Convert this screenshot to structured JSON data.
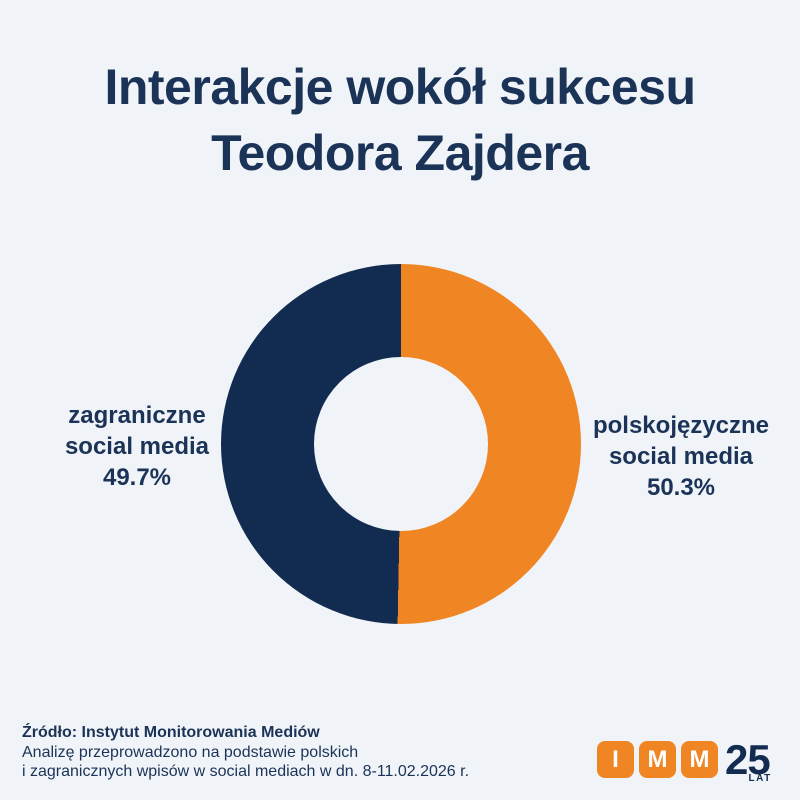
{
  "colors": {
    "background": "#F0F4F8",
    "navy": "#122C51",
    "orange": "#F08524",
    "text": "#1B3357"
  },
  "title": {
    "line1": "Interakcje wokół sukcesu",
    "line2": "Teodora Zajdera"
  },
  "chart_data": {
    "type": "pie",
    "donut": true,
    "title": "Interakcje wokół sukcesu Teodora Zajdera",
    "start_angle_deg": 0,
    "direction": "clockwise",
    "inner_radius_ratio": 0.48,
    "legend_position": "sides",
    "slices": [
      {
        "label": "polskojęzyczne social media",
        "value": 50.3,
        "display": "50.3%",
        "color": "#F08524",
        "side": "right"
      },
      {
        "label": "zagraniczne social media",
        "value": 49.7,
        "display": "49.7%",
        "color": "#122C51",
        "side": "left"
      }
    ]
  },
  "labels": {
    "left": {
      "line1": "zagraniczne",
      "line2": "social media"
    },
    "right": {
      "line1": "polskojęzyczne",
      "line2": "social media"
    }
  },
  "source": {
    "line1": "Źródło: Instytut Monitorowania Mediów",
    "line2": "Analizę przeprowadzono na podstawie polskich",
    "line3": "i zagranicznych wpisów w social mediach w dn. 8-11.02.2026 r."
  },
  "logo": {
    "letters": [
      "I",
      "M",
      "M"
    ],
    "number": "25",
    "suffix": "LAT"
  }
}
